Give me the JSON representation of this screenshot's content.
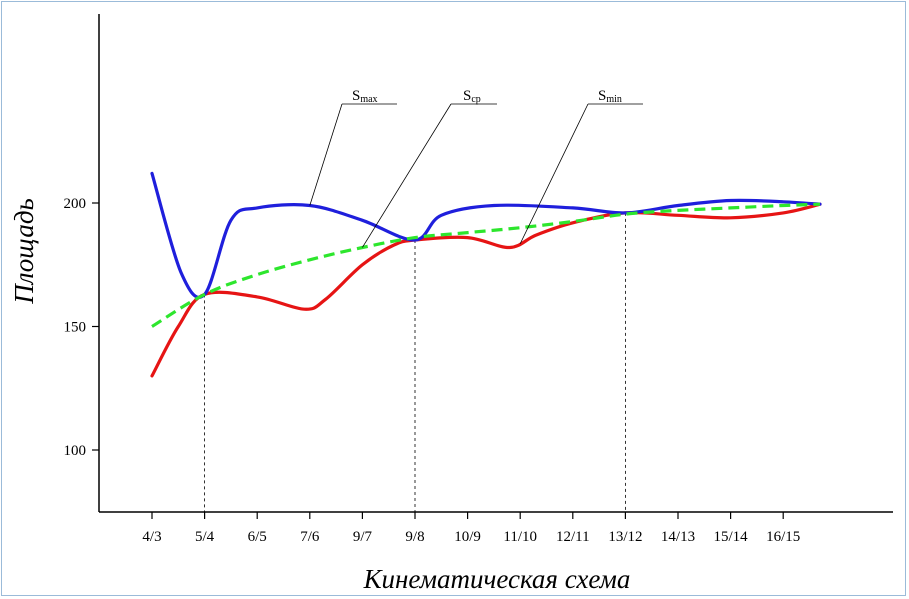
{
  "chart_data": {
    "type": "line",
    "title": "",
    "xlabel": "Кинематическая схема",
    "ylabel": "Площадь",
    "categories": [
      "4/3",
      "5/4",
      "6/5",
      "7/6",
      "9/7",
      "9/8",
      "10/9",
      "11/10",
      "12/11",
      "13/12",
      "14/13",
      "15/14",
      "16/15"
    ],
    "ylim": [
      75,
      275
    ],
    "yticks": [
      100,
      150,
      200
    ],
    "grid": false,
    "legend": "none",
    "series": [
      {
        "id": "s_max",
        "color": "#1f1fdc",
        "dashed": false,
        "points": [
          [
            0,
            212
          ],
          [
            0.55,
            172
          ],
          [
            1,
            163
          ],
          [
            1.5,
            193
          ],
          [
            2,
            198
          ],
          [
            3,
            199
          ],
          [
            4,
            193
          ],
          [
            5,
            185
          ],
          [
            5.5,
            195
          ],
          [
            6.5,
            199
          ],
          [
            8,
            198
          ],
          [
            9,
            196
          ],
          [
            10,
            199
          ],
          [
            11,
            201
          ],
          [
            12,
            200.5
          ],
          [
            12.7,
            199.5
          ]
        ]
      },
      {
        "id": "s_min",
        "color": "#e61414",
        "dashed": false,
        "points": [
          [
            0,
            130
          ],
          [
            0.5,
            150
          ],
          [
            1,
            163
          ],
          [
            2,
            162
          ],
          [
            2.9,
            157
          ],
          [
            3.3,
            161
          ],
          [
            4,
            175
          ],
          [
            4.6,
            183
          ],
          [
            5,
            185
          ],
          [
            6,
            186
          ],
          [
            6.8,
            182
          ],
          [
            7.3,
            187
          ],
          [
            8,
            192
          ],
          [
            9,
            196
          ],
          [
            10,
            195
          ],
          [
            11,
            194
          ],
          [
            12,
            196
          ],
          [
            12.7,
            199.5
          ]
        ]
      },
      {
        "id": "s_cp",
        "color": "#2de62d",
        "dashed": true,
        "points": [
          [
            0,
            150
          ],
          [
            1,
            163
          ],
          [
            2,
            171
          ],
          [
            3,
            177
          ],
          [
            4,
            182
          ],
          [
            5,
            186
          ],
          [
            6,
            188
          ],
          [
            7,
            190
          ],
          [
            8,
            192.5
          ],
          [
            9,
            195.5
          ],
          [
            10,
            197
          ],
          [
            11,
            198
          ],
          [
            12,
            199
          ],
          [
            12.7,
            199.5
          ]
        ]
      }
    ],
    "vertical_guides": [
      1,
      5,
      9
    ],
    "annotations": [
      {
        "series": "s_max",
        "main": "S",
        "sub": "max",
        "target": [
          3,
          199
        ]
      },
      {
        "series": "s_cp",
        "main": "S",
        "sub": "cp",
        "target": [
          4,
          182
        ]
      },
      {
        "series": "s_min",
        "main": "S",
        "sub": "min",
        "target": [
          7.0,
          183.5
        ]
      }
    ]
  }
}
